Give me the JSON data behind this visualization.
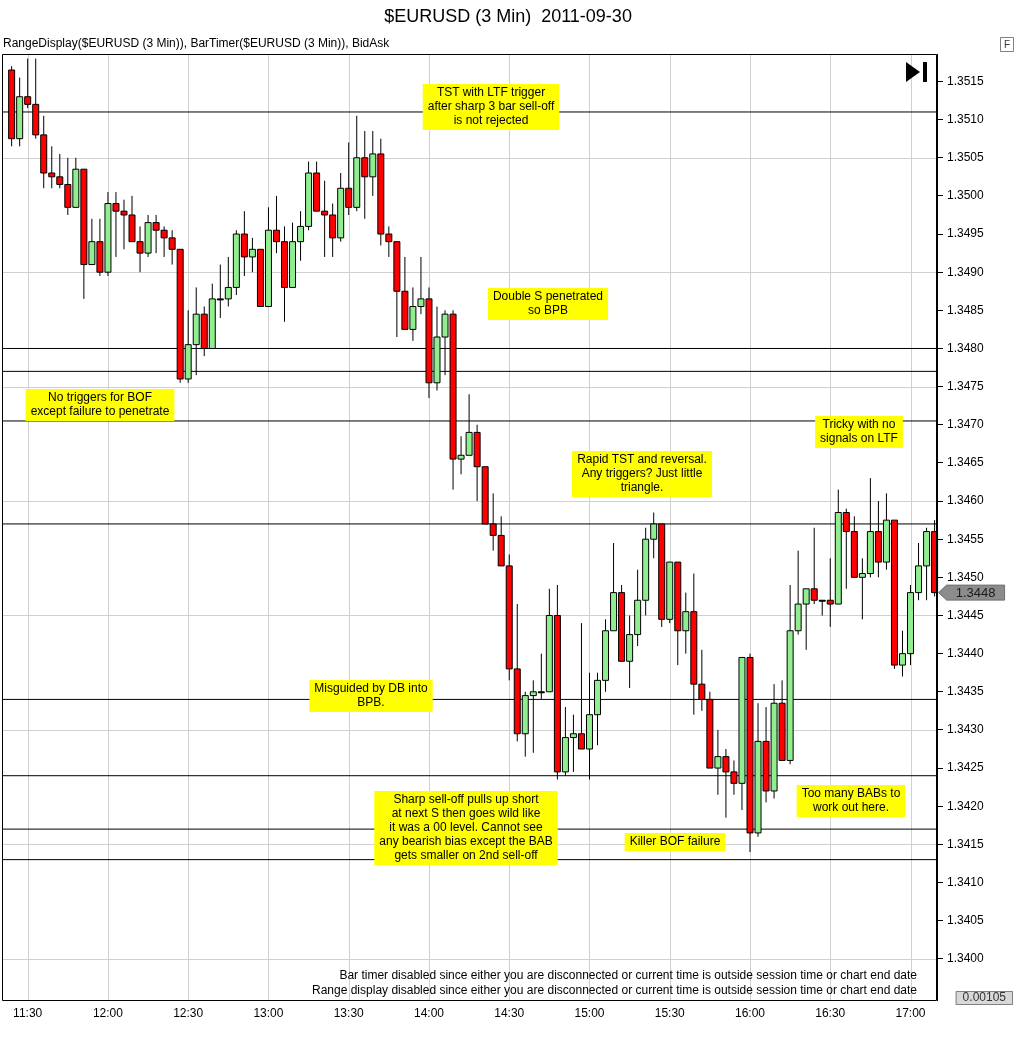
{
  "chart_data": {
    "type": "candlestick",
    "title": "$EURUSD (3 Min)  2011-09-30",
    "subtitle": "RangeDisplay($EURUSD (3 Min)), BarTimer($EURUSD (3 Min)), BidAsk",
    "x": [
      11.4,
      11.45,
      11.5,
      11.55,
      11.6,
      11.65,
      11.7,
      11.75,
      11.8,
      11.85,
      11.9,
      11.95,
      12,
      12.05,
      12.1,
      12.15,
      12.2,
      12.25,
      12.3,
      12.35,
      12.4,
      12.45,
      12.5,
      12.55,
      12.6,
      12.65,
      12.7,
      12.75,
      12.8,
      12.85,
      12.9,
      12.95,
      13,
      13.05,
      13.1,
      13.15,
      13.2,
      13.25,
      13.3,
      13.35,
      13.4,
      13.45,
      13.5,
      13.55,
      13.6,
      13.65,
      13.7,
      13.75,
      13.8,
      13.85,
      13.9,
      13.95,
      14,
      14.05,
      14.1,
      14.15,
      14.2,
      14.25,
      14.3,
      14.35,
      14.4,
      14.45,
      14.5,
      14.55,
      14.6,
      14.65,
      14.7,
      14.75,
      14.8,
      14.85,
      14.9,
      14.95,
      15,
      15.05,
      15.1,
      15.15,
      15.2,
      15.25,
      15.3,
      15.35,
      15.4,
      15.45,
      15.5,
      15.55,
      15.6,
      15.65,
      15.7,
      15.75,
      15.8,
      15.85,
      15.9,
      15.95,
      16,
      16.05,
      16.1,
      16.15,
      16.2,
      16.25,
      16.3,
      16.35,
      16.4,
      16.45,
      16.5,
      16.55,
      16.6,
      16.65,
      16.7,
      16.75,
      16.8,
      16.85,
      16.9,
      16.95,
      17,
      17.05,
      17.1,
      17.15
    ],
    "ohlc": [
      [
        1.35165,
        1.3517,
        1.35065,
        1.35075
      ],
      [
        1.35075,
        1.35155,
        1.35065,
        1.3513
      ],
      [
        1.3513,
        1.3518,
        1.35115,
        1.3512
      ],
      [
        1.3512,
        1.3518,
        1.35075,
        1.3508
      ],
      [
        1.3508,
        1.35105,
        1.3501,
        1.3503
      ],
      [
        1.3503,
        1.35065,
        1.3501,
        1.35025
      ],
      [
        1.35025,
        1.35055,
        1.3501,
        1.35015
      ],
      [
        1.35015,
        1.3505,
        1.34975,
        1.34985
      ],
      [
        1.34985,
        1.3505,
        1.34985,
        1.35035
      ],
      [
        1.35035,
        1.35035,
        1.34865,
        1.3491
      ],
      [
        1.3491,
        1.3497,
        1.3491,
        1.3494
      ],
      [
        1.3494,
        1.3497,
        1.34895,
        1.349
      ],
      [
        1.349,
        1.35005,
        1.34895,
        1.3499
      ],
      [
        1.3499,
        1.35005,
        1.3492,
        1.3498
      ],
      [
        1.3498,
        1.34995,
        1.3493,
        1.34975
      ],
      [
        1.34975,
        1.35,
        1.3494,
        1.3494
      ],
      [
        1.3494,
        1.3496,
        1.349,
        1.34925
      ],
      [
        1.34925,
        1.34975,
        1.3492,
        1.34965
      ],
      [
        1.34965,
        1.34975,
        1.34925,
        1.34955
      ],
      [
        1.34955,
        1.3496,
        1.3492,
        1.34945
      ],
      [
        1.34945,
        1.34955,
        1.3491,
        1.3493
      ],
      [
        1.3493,
        1.3493,
        1.34755,
        1.3476
      ],
      [
        1.3476,
        1.3485,
        1.34755,
        1.34805
      ],
      [
        1.34805,
        1.3488,
        1.34765,
        1.34845
      ],
      [
        1.34845,
        1.34855,
        1.3479,
        1.348
      ],
      [
        1.348,
        1.34885,
        1.348,
        1.34865
      ],
      [
        1.34865,
        1.3491,
        1.3484,
        1.34865
      ],
      [
        1.34865,
        1.3492,
        1.34855,
        1.3488
      ],
      [
        1.3488,
        1.34955,
        1.3487,
        1.3495
      ],
      [
        1.3495,
        1.3498,
        1.34895,
        1.3492
      ],
      [
        1.3492,
        1.34945,
        1.349,
        1.3493
      ],
      [
        1.3493,
        1.3493,
        1.34855,
        1.34855
      ],
      [
        1.34855,
        1.34985,
        1.34855,
        1.34955
      ],
      [
        1.34955,
        1.35,
        1.34925,
        1.3494
      ],
      [
        1.3494,
        1.3496,
        1.34835,
        1.3488
      ],
      [
        1.3488,
        1.34965,
        1.3488,
        1.3494
      ],
      [
        1.3494,
        1.3498,
        1.34915,
        1.3496
      ],
      [
        1.3496,
        1.35045,
        1.34955,
        1.3503
      ],
      [
        1.3503,
        1.35045,
        1.3498,
        1.3498
      ],
      [
        1.3498,
        1.3502,
        1.3492,
        1.34975
      ],
      [
        1.34975,
        1.3499,
        1.3492,
        1.34945
      ],
      [
        1.34945,
        1.3503,
        1.3494,
        1.3501
      ],
      [
        1.3501,
        1.3507,
        1.34975,
        1.34985
      ],
      [
        1.34985,
        1.35105,
        1.3498,
        1.3505
      ],
      [
        1.3505,
        1.35085,
        1.3497,
        1.35025
      ],
      [
        1.35025,
        1.35085,
        1.35,
        1.35055
      ],
      [
        1.35055,
        1.35075,
        1.34935,
        1.3495
      ],
      [
        1.3495,
        1.3496,
        1.3492,
        1.3494
      ],
      [
        1.3494,
        1.3494,
        1.34815,
        1.34875
      ],
      [
        1.34875,
        1.3492,
        1.34825,
        1.34825
      ],
      [
        1.34825,
        1.3488,
        1.3481,
        1.34855
      ],
      [
        1.34855,
        1.3492,
        1.34845,
        1.34865
      ],
      [
        1.34865,
        1.3488,
        1.34735,
        1.34755
      ],
      [
        1.34755,
        1.34855,
        1.34745,
        1.34815
      ],
      [
        1.34815,
        1.3485,
        1.34765,
        1.34845
      ],
      [
        1.34845,
        1.3485,
        1.34615,
        1.34655
      ],
      [
        1.34655,
        1.34685,
        1.34635,
        1.3466
      ],
      [
        1.3466,
        1.3474,
        1.3466,
        1.3469
      ],
      [
        1.3469,
        1.347,
        1.346,
        1.34645
      ],
      [
        1.34645,
        1.34645,
        1.3457,
        1.3457
      ],
      [
        1.3457,
        1.3461,
        1.34535,
        1.34555
      ],
      [
        1.34555,
        1.3458,
        1.34515,
        1.34515
      ],
      [
        1.34515,
        1.3453,
        1.34365,
        1.3438
      ],
      [
        1.3438,
        1.34465,
        1.34285,
        1.34295
      ],
      [
        1.34295,
        1.3435,
        1.34265,
        1.34345
      ],
      [
        1.34345,
        1.34365,
        1.3427,
        1.3435
      ],
      [
        1.3435,
        1.344,
        1.3434,
        1.3435
      ],
      [
        1.3435,
        1.34485,
        1.3435,
        1.3445
      ],
      [
        1.3445,
        1.3449,
        1.34235,
        1.34245
      ],
      [
        1.34245,
        1.3433,
        1.3424,
        1.3429
      ],
      [
        1.3429,
        1.3432,
        1.34245,
        1.34295
      ],
      [
        1.34295,
        1.3444,
        1.34275,
        1.34275
      ],
      [
        1.34275,
        1.34375,
        1.34235,
        1.3432
      ],
      [
        1.3432,
        1.34375,
        1.3428,
        1.34365
      ],
      [
        1.34365,
        1.34445,
        1.3435,
        1.3443
      ],
      [
        1.3443,
        1.34545,
        1.3443,
        1.3448
      ],
      [
        1.3448,
        1.3449,
        1.3439,
        1.3439
      ],
      [
        1.3439,
        1.3445,
        1.34355,
        1.34425
      ],
      [
        1.34425,
        1.3451,
        1.3441,
        1.3447
      ],
      [
        1.3447,
        1.34565,
        1.3445,
        1.3455
      ],
      [
        1.3455,
        1.34585,
        1.34525,
        1.3457
      ],
      [
        1.3457,
        1.3457,
        1.34435,
        1.34445
      ],
      [
        1.34445,
        1.3452,
        1.3444,
        1.3452
      ],
      [
        1.3452,
        1.3452,
        1.34385,
        1.3443
      ],
      [
        1.3443,
        1.3448,
        1.344,
        1.34455
      ],
      [
        1.34455,
        1.34505,
        1.3432,
        1.3436
      ],
      [
        1.3436,
        1.34405,
        1.34325,
        1.3434
      ],
      [
        1.3434,
        1.3435,
        1.3425,
        1.3425
      ],
      [
        1.3425,
        1.343,
        1.34215,
        1.34265
      ],
      [
        1.34265,
        1.34275,
        1.34185,
        1.34245
      ],
      [
        1.34245,
        1.3426,
        1.34215,
        1.3423
      ],
      [
        1.3423,
        1.34395,
        1.34195,
        1.34395
      ],
      [
        1.34395,
        1.344,
        1.3414,
        1.34165
      ],
      [
        1.34165,
        1.34335,
        1.3416,
        1.34285
      ],
      [
        1.34285,
        1.3433,
        1.34205,
        1.3422
      ],
      [
        1.3422,
        1.3436,
        1.3421,
        1.34335
      ],
      [
        1.34335,
        1.34365,
        1.3426,
        1.3426
      ],
      [
        1.3426,
        1.3449,
        1.34255,
        1.3443
      ],
      [
        1.3443,
        1.34535,
        1.34425,
        1.34465
      ],
      [
        1.34465,
        1.34485,
        1.34405,
        1.34485
      ],
      [
        1.34485,
        1.34565,
        1.34465,
        1.3447
      ],
      [
        1.3447,
        1.3447,
        1.3445,
        1.3447
      ],
      [
        1.3447,
        1.34525,
        1.34435,
        1.34465
      ],
      [
        1.34465,
        1.34615,
        1.34465,
        1.34585
      ],
      [
        1.34585,
        1.3459,
        1.34485,
        1.3456
      ],
      [
        1.3456,
        1.3458,
        1.345,
        1.345
      ],
      [
        1.345,
        1.34525,
        1.34445,
        1.34505
      ],
      [
        1.34505,
        1.3463,
        1.345,
        1.3456
      ],
      [
        1.3456,
        1.346,
        1.345,
        1.3452
      ],
      [
        1.3452,
        1.3461,
        1.3451,
        1.34575
      ],
      [
        1.34575,
        1.34575,
        1.3438,
        1.34385
      ],
      [
        1.34385,
        1.3443,
        1.3437,
        1.344
      ],
      [
        1.344,
        1.3449,
        1.34385,
        1.3448
      ],
      [
        1.3448,
        1.34545,
        1.3447,
        1.34515
      ],
      [
        1.34515,
        1.34565,
        1.3447,
        1.3456
      ],
      [
        1.3456,
        1.34575,
        1.34475,
        1.3448
      ]
    ],
    "colors": [
      "#ff0000",
      "#90ee90",
      "#ff0000",
      "#ff0000",
      "#ff0000",
      "#ff0000",
      "#ff0000",
      "#ff0000",
      "#90ee90",
      "#ff0000",
      "#90ee90",
      "#ff0000",
      "#90ee90",
      "#ff0000",
      "#ff0000",
      "#ff0000",
      "#ff0000",
      "#90ee90",
      "#ff0000",
      "#ff0000",
      "#ff0000",
      "#ff0000",
      "#90ee90",
      "#90ee90",
      "#ff0000",
      "#90ee90",
      "#000000",
      "#90ee90",
      "#90ee90",
      "#ff0000",
      "#90ee90",
      "#ff0000",
      "#90ee90",
      "#ff0000",
      "#ff0000",
      "#90ee90",
      "#90ee90",
      "#90ee90",
      "#ff0000",
      "#ff0000",
      "#ff0000",
      "#90ee90",
      "#ff0000",
      "#90ee90",
      "#ff0000",
      "#90ee90",
      "#ff0000",
      "#ff0000",
      "#ff0000",
      "#ff0000",
      "#90ee90",
      "#90ee90",
      "#ff0000",
      "#90ee90",
      "#90ee90",
      "#ff0000",
      "#90ee90",
      "#90ee90",
      "#ff0000",
      "#ff0000",
      "#ff0000",
      "#ff0000",
      "#ff0000",
      "#ff0000",
      "#90ee90",
      "#90ee90",
      "#000000",
      "#90ee90",
      "#ff0000",
      "#90ee90",
      "#90ee90",
      "#ff0000",
      "#90ee90",
      "#90ee90",
      "#90ee90",
      "#90ee90",
      "#ff0000",
      "#90ee90",
      "#90ee90",
      "#90ee90",
      "#90ee90",
      "#ff0000",
      "#90ee90",
      "#ff0000",
      "#90ee90",
      "#ff0000",
      "#ff0000",
      "#ff0000",
      "#90ee90",
      "#ff0000",
      "#ff0000",
      "#90ee90",
      "#ff0000",
      "#90ee90",
      "#ff0000",
      "#90ee90",
      "#ff0000",
      "#90ee90",
      "#90ee90",
      "#90ee90",
      "#ff0000",
      "#000000",
      "#ff0000",
      "#90ee90",
      "#ff0000",
      "#ff0000",
      "#90ee90",
      "#90ee90",
      "#ff0000",
      "#90ee90",
      "#ff0000",
      "#90ee90",
      "#90ee90",
      "#90ee90",
      "#90ee90",
      "#ff0000"
    ],
    "xlim": [
      11.34,
      17.165
    ],
    "ylim": [
      1.33946,
      1.35186
    ],
    "xticks": [
      {
        "value": 11.5,
        "label": "11:30"
      },
      {
        "value": 12,
        "label": "12:00"
      },
      {
        "value": 12.5,
        "label": "12:30"
      },
      {
        "value": 13,
        "label": "13:00"
      },
      {
        "value": 13.5,
        "label": "13:30"
      },
      {
        "value": 14,
        "label": "14:00"
      },
      {
        "value": 14.5,
        "label": "14:30"
      },
      {
        "value": 15,
        "label": "15:00"
      },
      {
        "value": 15.5,
        "label": "15:30"
      },
      {
        "value": 16,
        "label": "16:00"
      },
      {
        "value": 16.5,
        "label": "16:30"
      },
      {
        "value": 17,
        "label": "17:00"
      }
    ],
    "yticks": [
      {
        "value": 1.34,
        "label": "1.3400"
      },
      1.3405,
      {
        "value": 1.341,
        "label": "1.3410"
      },
      1.3415,
      {
        "value": 1.342,
        "label": "1.3420"
      },
      1.3425,
      {
        "value": 1.343,
        "label": "1.3430"
      },
      1.3435,
      {
        "value": 1.344,
        "label": "1.3440"
      },
      1.3445,
      {
        "value": 1.345,
        "label": "1.3450"
      },
      1.3455,
      {
        "value": 1.346,
        "label": "1.3460"
      },
      1.3465,
      {
        "value": 1.347,
        "label": "1.3470"
      },
      1.3475,
      {
        "value": 1.348,
        "label": "1.3480"
      },
      1.3485,
      {
        "value": 1.349,
        "label": "1.3490"
      },
      1.3495,
      {
        "value": 1.35,
        "label": "1.3500"
      },
      1.3505,
      {
        "value": 1.351,
        "label": "1.3510"
      },
      1.3515
    ],
    "grid": true,
    "ref_lines": [
      {
        "axis": "y",
        "value": 1.3511,
        "color": "#000000"
      },
      {
        "axis": "y",
        "value": 1.348,
        "color": "#000000"
      },
      {
        "axis": "y",
        "value": 1.3477,
        "color": "#000000"
      },
      {
        "axis": "y",
        "value": 1.34705,
        "color": "#000000"
      },
      {
        "axis": "y",
        "value": 1.3457,
        "color": "#000000"
      },
      {
        "axis": "y",
        "value": 1.3434,
        "color": "#000000"
      },
      {
        "axis": "y",
        "value": 1.3424,
        "color": "#000000"
      },
      {
        "axis": "y",
        "value": 1.3417,
        "color": "#000000"
      },
      {
        "axis": "y",
        "value": 1.3413,
        "color": "#000000"
      }
    ],
    "annotations": [
      "TST with LTF trigger\nafter sharp 3 bar sell-off\nis not rejected",
      "Double S penetrated\nso BPB",
      "No triggers for BOF\nexcept failure to penetrate",
      "Tricky with no\nsignals on LTF",
      "Rapid TST and reversal.\nAny triggers? Just little\ntriangle.",
      "Misguided by DB into\nBPB.",
      "Sharp sell-off pulls up short\nat next S then goes wild like\nit was a 00 level. Cannot see\nany bearish bias except the BAB\ngets smaller on 2nd sell-off",
      "Killer BOF failure",
      "Too many BABs to\nwork out here.",
      "F",
      "0.00105",
      "Bar timer disabled since either you are disconnected or current time is outside session time or chart end date",
      "Range display disabled since either you are disconnected or current time is outside session time or chart end date",
      {
        "text": "1.3448",
        "x": 17.15,
        "y": 1.3448
      }
    ]
  }
}
